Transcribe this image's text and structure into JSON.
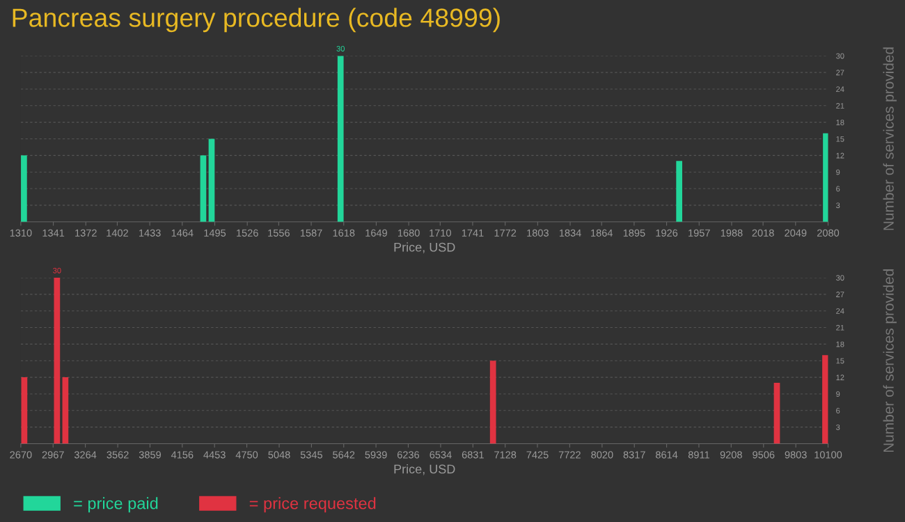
{
  "chart_data": [
    {
      "type": "bar",
      "title": "Pancreas surgery procedure (code 48999)",
      "xlabel": "Price, USD",
      "ylabel": "Number of services provided",
      "x": [
        1313,
        1484,
        1492,
        1615,
        1938,
        2078
      ],
      "series": [
        {
          "name": "= price paid",
          "color": "#22d69a",
          "values": [
            12,
            12,
            15,
            30,
            11,
            16
          ],
          "value_labels": [
            null,
            null,
            null,
            "30",
            null,
            null
          ]
        }
      ],
      "xlim": [
        1310,
        2080
      ],
      "xticks": [
        1310,
        1341,
        1372,
        1402,
        1433,
        1464,
        1495,
        1526,
        1556,
        1587,
        1618,
        1649,
        1680,
        1710,
        1741,
        1772,
        1803,
        1834,
        1864,
        1895,
        1926,
        1957,
        1988,
        2018,
        2049,
        2080
      ],
      "ylim": [
        0,
        30
      ],
      "yticks": [
        3,
        6,
        9,
        12,
        15,
        18,
        21,
        24,
        27,
        30
      ],
      "grid": "y",
      "legend": "bottom left"
    },
    {
      "type": "bar",
      "xlabel": "Price, USD",
      "ylabel": "Number of services provided",
      "x": [
        2702,
        3003,
        3080,
        7016,
        9629,
        10074
      ],
      "series": [
        {
          "name": "= price requested",
          "color": "#e03341",
          "values": [
            12,
            30,
            12,
            15,
            11,
            16
          ],
          "value_labels": [
            null,
            "30",
            null,
            null,
            null,
            null
          ]
        }
      ],
      "xlim": [
        2670,
        10100
      ],
      "xticks": [
        2670,
        2967,
        3264,
        3562,
        3859,
        4156,
        4453,
        4750,
        5048,
        5345,
        5642,
        5939,
        6236,
        6534,
        6831,
        7128,
        7425,
        7722,
        8020,
        8317,
        8614,
        8911,
        9208,
        9506,
        9803,
        10100
      ],
      "ylim": [
        0,
        30
      ],
      "yticks": [
        3,
        6,
        9,
        12,
        15,
        18,
        21,
        24,
        27,
        30
      ],
      "grid": "y",
      "legend": "bottom left"
    }
  ]
}
